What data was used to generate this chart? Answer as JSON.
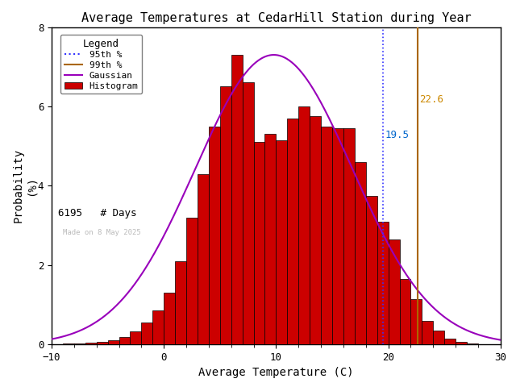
{
  "title": "Average Temperatures at CedarHill Station during Year",
  "xlabel": "Average Temperature (C)",
  "ylabel": "Probability\n(%)",
  "xlim": [
    -10,
    30
  ],
  "ylim": [
    0,
    8
  ],
  "yticks": [
    0,
    2,
    4,
    6,
    8
  ],
  "xticks": [
    -10,
    0,
    10,
    20,
    30
  ],
  "bin_lefts": [
    -9,
    -8,
    -7,
    -6,
    -5,
    -4,
    -3,
    -2,
    -1,
    0,
    1,
    2,
    3,
    4,
    5,
    6,
    7,
    8,
    9,
    10,
    11,
    12,
    13,
    14,
    15,
    16,
    17,
    18,
    19,
    20,
    21,
    22,
    23,
    24,
    25,
    26,
    27,
    28
  ],
  "bin_values": [
    0.02,
    0.02,
    0.04,
    0.06,
    0.1,
    0.18,
    0.32,
    0.55,
    0.85,
    1.3,
    2.1,
    3.2,
    4.3,
    5.5,
    6.5,
    7.3,
    6.6,
    5.1,
    5.3,
    5.15,
    5.7,
    6.0,
    5.75,
    5.5,
    5.45,
    5.45,
    4.6,
    3.75,
    3.1,
    2.65,
    1.65,
    1.15,
    0.6,
    0.35,
    0.15,
    0.06,
    0.02,
    0.01
  ],
  "gauss_mean": 9.8,
  "gauss_std": 7.0,
  "gauss_amplitude": 7.3,
  "pct_95": 19.5,
  "pct_99": 22.6,
  "n_days": "6195",
  "watermark": "Made on 8 May 2025",
  "bar_color": "#cc0000",
  "bar_edge_color": "#000000",
  "gauss_color": "#9900bb",
  "pct95_color": "#3333ff",
  "pct99_color": "#aa6600",
  "pct95_text_color": "#0066cc",
  "pct99_text_color": "#cc8800",
  "legend_label_95": "95th %",
  "legend_label_99": "99th %",
  "legend_label_gauss": "Gaussian",
  "legend_label_hist": "Histogram",
  "legend_label_days": "# Days",
  "bg_color": "#ffffff",
  "title_fontsize": 11,
  "axis_fontsize": 10,
  "tick_fontsize": 9,
  "legend_fontsize": 8
}
